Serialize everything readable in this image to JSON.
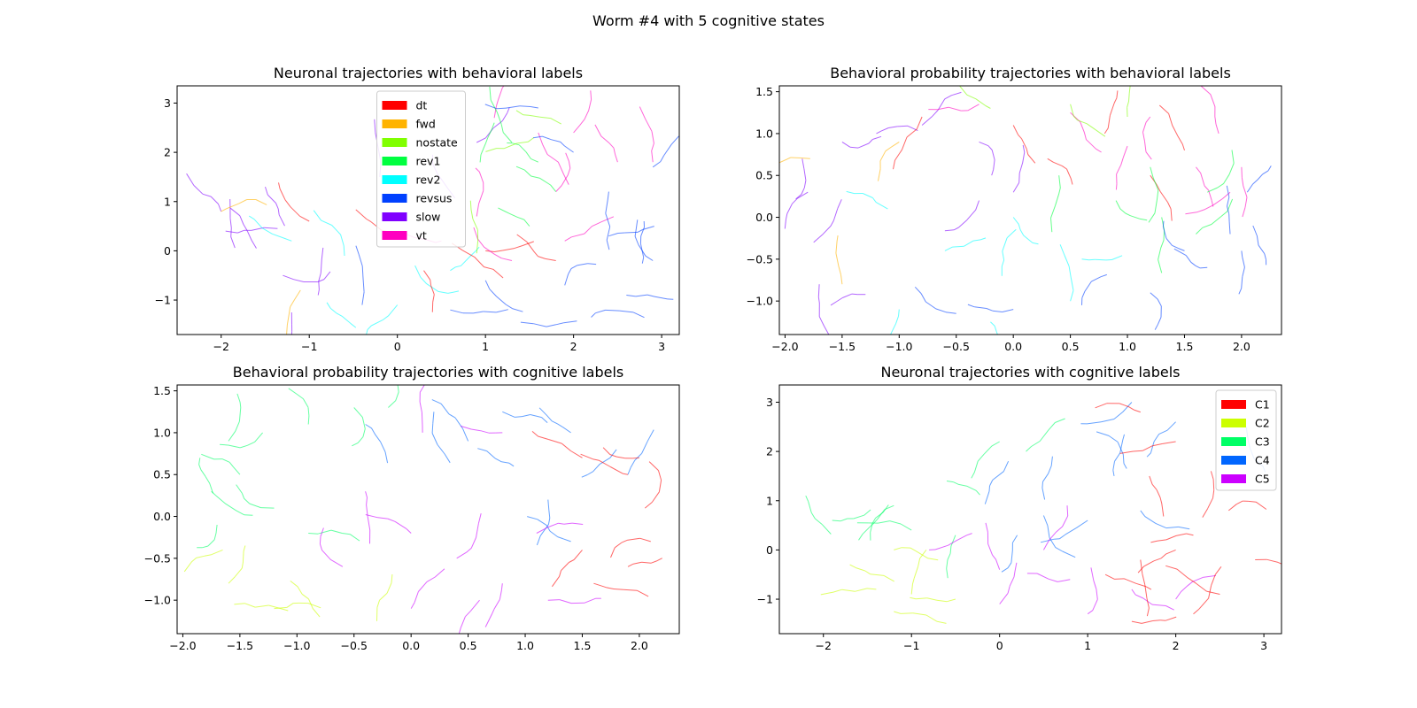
{
  "figure": {
    "title": "Worm #4 with 5 cognitive states"
  },
  "chart_data": [
    {
      "type": "scatter",
      "title": "Neuronal trajectories with behavioral labels",
      "xlim": [
        -2.5,
        3.2
      ],
      "ylim": [
        -1.7,
        3.35
      ],
      "xticks": [
        -2,
        -1,
        0,
        1,
        2,
        3
      ],
      "yticks": [
        -1,
        0,
        1,
        2,
        3
      ],
      "grid": false,
      "legend": {
        "location": "upper-center",
        "entries": [
          {
            "label": "dt",
            "color": "#ff0000"
          },
          {
            "label": "fwd",
            "color": "#ffb300"
          },
          {
            "label": "nostate",
            "color": "#80ff00"
          },
          {
            "label": "rev1",
            "color": "#00ff40"
          },
          {
            "label": "rev2",
            "color": "#00ffff"
          },
          {
            "label": "revsus",
            "color": "#0040ff"
          },
          {
            "label": "slow",
            "color": "#8000ff"
          },
          {
            "label": "vt",
            "color": "#ff00c0"
          }
        ]
      },
      "series": [
        {
          "name": "slow",
          "color": "#8000ff",
          "points": [
            [
              -1.5,
              1.3
            ],
            [
              -1.9,
              1.05
            ],
            [
              -2.0,
              0.8
            ],
            [
              -1.95,
              0.4
            ],
            [
              -1.6,
              0.05
            ],
            [
              -1.3,
              -0.5
            ],
            [
              -1.2,
              -1.25
            ],
            [
              -0.9,
              -0.9
            ],
            [
              -0.2,
              1.5
            ],
            [
              0.4,
              1.95
            ],
            [
              0.9,
              2.2
            ]
          ]
        },
        {
          "name": "fwd",
          "color": "#ffb300",
          "points": [
            [
              -2.0,
              0.8
            ],
            [
              -1.1,
              -0.8
            ]
          ]
        },
        {
          "name": "rev2",
          "color": "#00ffff",
          "points": [
            [
              -1.2,
              0.2
            ],
            [
              -0.6,
              -0.1
            ],
            [
              0.2,
              -0.3
            ],
            [
              0.6,
              -0.4
            ],
            [
              -0.8,
              -1.05
            ],
            [
              0.0,
              -1.1
            ]
          ]
        },
        {
          "name": "dt",
          "color": "#ff0000",
          "points": [
            [
              -1.0,
              0.6
            ],
            [
              0.0,
              0.3
            ],
            [
              1.0,
              0.0
            ],
            [
              1.8,
              -0.2
            ],
            [
              0.3,
              -0.4
            ],
            [
              1.2,
              -0.55
            ]
          ]
        },
        {
          "name": "vt",
          "color": "#ff00c0",
          "points": [
            [
              1.1,
              2.7
            ],
            [
              1.6,
              2.4
            ],
            [
              2.5,
              1.8
            ],
            [
              1.8,
              1.2
            ],
            [
              0.9,
              0.7
            ],
            [
              0.5,
              0.2
            ],
            [
              2.0,
              2.4
            ],
            [
              2.9,
              1.8
            ],
            [
              1.9,
              0.2
            ],
            [
              1.3,
              -0.2
            ]
          ]
        },
        {
          "name": "rev1",
          "color": "#00ff40",
          "points": [
            [
              1.1,
              2.6
            ],
            [
              1.3,
              2.2
            ],
            [
              1.6,
              1.8
            ],
            [
              1.8,
              1.2
            ],
            [
              1.5,
              0.5
            ]
          ]
        },
        {
          "name": "nostate",
          "color": "#80ff00",
          "points": [
            [
              1.35,
              2.85
            ],
            [
              1.55,
              2.3
            ],
            [
              0.9,
              -0.05
            ]
          ]
        },
        {
          "name": "revsus",
          "color": "#0040ff",
          "points": [
            [
              1.6,
              2.9
            ],
            [
              2.0,
              2.0
            ],
            [
              2.4,
              1.2
            ],
            [
              2.9,
              1.7
            ],
            [
              2.8,
              0.6
            ],
            [
              2.9,
              -0.2
            ],
            [
              2.6,
              -0.9
            ],
            [
              2.2,
              -1.35
            ],
            [
              1.4,
              -1.45
            ],
            [
              0.6,
              -1.2
            ],
            [
              -0.4,
              -1.1
            ],
            [
              1.0,
              -0.6
            ],
            [
              1.9,
              -0.7
            ],
            [
              2.4,
              0.3
            ]
          ]
        }
      ]
    },
    {
      "type": "scatter",
      "title": "Behavioral probability trajectories with behavioral labels",
      "xlim": [
        -2.05,
        2.35
      ],
      "ylim": [
        -1.4,
        1.57
      ],
      "xticks": [
        -2.0,
        -1.5,
        -1.0,
        -0.5,
        0.0,
        0.5,
        1.0,
        1.5,
        2.0
      ],
      "yticks": [
        -1.0,
        -0.5,
        0.0,
        0.5,
        1.0,
        1.5
      ],
      "grid": false,
      "series": [
        {
          "name": "slow",
          "color": "#8000ff",
          "points": [
            [
              -1.85,
              0.7
            ],
            [
              -1.8,
              0.3
            ],
            [
              -1.75,
              -0.3
            ],
            [
              -1.7,
              -0.8
            ],
            [
              -1.6,
              -1.05
            ],
            [
              -1.5,
              0.9
            ],
            [
              -1.2,
              1.0
            ],
            [
              -0.8,
              1.1
            ],
            [
              -0.3,
              0.9
            ],
            [
              0.0,
              0.3
            ],
            [
              -0.3,
              0.2
            ]
          ]
        },
        {
          "name": "fwd",
          "color": "#ffb300",
          "points": [
            [
              -1.78,
              0.7
            ],
            [
              -1.5,
              -0.8
            ],
            [
              -1.0,
              0.9
            ]
          ]
        },
        {
          "name": "rev2",
          "color": "#00ffff",
          "points": [
            [
              -1.1,
              0.1
            ],
            [
              -0.6,
              -0.4
            ],
            [
              -0.1,
              -0.7
            ],
            [
              0.5,
              -1.0
            ],
            [
              0.0,
              0.0
            ],
            [
              0.6,
              -0.5
            ],
            [
              -1.0,
              -1.1
            ],
            [
              -0.2,
              -1.25
            ]
          ]
        },
        {
          "name": "dt",
          "color": "#ff0000",
          "points": [
            [
              -0.8,
              1.2
            ],
            [
              0.0,
              1.1
            ],
            [
              0.8,
              1.0
            ],
            [
              1.5,
              0.8
            ],
            [
              0.3,
              0.7
            ],
            [
              1.2,
              0.5
            ]
          ]
        },
        {
          "name": "vt",
          "color": "#ff00c0",
          "points": [
            [
              -0.3,
              1.35
            ],
            [
              0.5,
              1.25
            ],
            [
              1.2,
              1.2
            ],
            [
              1.8,
              1.0
            ],
            [
              2.0,
              0.6
            ],
            [
              1.9,
              0.3
            ],
            [
              1.0,
              0.85
            ],
            [
              1.6,
              0.6
            ]
          ]
        },
        {
          "name": "nostate",
          "color": "#80ff00",
          "points": [
            [
              -0.2,
              1.3
            ],
            [
              0.5,
              1.35
            ],
            [
              1.0,
              1.2
            ]
          ]
        },
        {
          "name": "rev1",
          "color": "#00ff40",
          "points": [
            [
              0.4,
              0.5
            ],
            [
              0.9,
              0.2
            ],
            [
              1.3,
              0.0
            ],
            [
              1.6,
              -0.2
            ],
            [
              1.2,
              0.6
            ],
            [
              1.7,
              0.3
            ]
          ]
        },
        {
          "name": "revsus",
          "color": "#0040ff",
          "points": [
            [
              2.05,
              0.3
            ],
            [
              2.1,
              -0.1
            ],
            [
              2.0,
              -0.4
            ],
            [
              1.7,
              -0.6
            ],
            [
              1.2,
              -0.9
            ],
            [
              0.6,
              -1.05
            ],
            [
              0.0,
              -1.1
            ],
            [
              -0.5,
              -1.15
            ],
            [
              1.5,
              -0.4
            ],
            [
              1.9,
              -0.2
            ]
          ]
        }
      ]
    },
    {
      "type": "scatter",
      "title": "Behavioral probability trajectories with cognitive labels",
      "xlim": [
        -2.05,
        2.35
      ],
      "ylim": [
        -1.4,
        1.57
      ],
      "xticks": [
        -2.0,
        -1.5,
        -1.0,
        -0.5,
        0.0,
        0.5,
        1.0,
        1.5,
        2.0
      ],
      "yticks": [
        -1.0,
        -0.5,
        0.0,
        0.5,
        1.0,
        1.5
      ],
      "grid": false,
      "series": [
        {
          "name": "C3",
          "color": "#00ff66",
          "points": [
            [
              -1.85,
              0.7
            ],
            [
              -1.75,
              0.3
            ],
            [
              -1.7,
              -0.1
            ],
            [
              -1.6,
              0.9
            ],
            [
              -1.3,
              1.0
            ],
            [
              -0.9,
              1.1
            ],
            [
              -0.5,
              1.3
            ],
            [
              -0.2,
              1.3
            ],
            [
              -1.5,
              0.5
            ],
            [
              -1.2,
              0.1
            ],
            [
              -0.9,
              -0.2
            ]
          ]
        },
        {
          "name": "C2",
          "color": "#ccff00",
          "points": [
            [
              -1.65,
              -0.4
            ],
            [
              -1.6,
              -0.8
            ],
            [
              -1.55,
              -1.05
            ],
            [
              -1.2,
              -1.1
            ],
            [
              -0.8,
              -1.2
            ],
            [
              -0.3,
              -1.25
            ]
          ]
        },
        {
          "name": "C4",
          "color": "#0066ff",
          "points": [
            [
              -0.4,
              1.1
            ],
            [
              0.2,
              1.25
            ],
            [
              0.8,
              1.25
            ],
            [
              1.4,
              1.0
            ],
            [
              1.8,
              0.8
            ],
            [
              1.9,
              0.5
            ],
            [
              0.9,
              0.6
            ],
            [
              1.2,
              0.2
            ],
            [
              1.4,
              -0.3
            ],
            [
              0.5,
              0.9
            ]
          ]
        },
        {
          "name": "C5",
          "color": "#cc00ff",
          "points": [
            [
              -0.4,
              0.3
            ],
            [
              0.0,
              -0.2
            ],
            [
              0.4,
              -0.5
            ],
            [
              0.8,
              -0.8
            ],
            [
              1.2,
              -1.0
            ],
            [
              0.0,
              -1.1
            ],
            [
              0.6,
              -1.0
            ],
            [
              -0.6,
              -0.6
            ],
            [
              0.1,
              1.0
            ],
            [
              0.8,
              1.0
            ],
            [
              1.1,
              -0.2
            ]
          ]
        },
        {
          "name": "C1",
          "color": "#ff0000",
          "points": [
            [
              1.5,
              0.7
            ],
            [
              1.9,
              0.5
            ],
            [
              2.05,
              0.1
            ],
            [
              2.1,
              -0.3
            ],
            [
              1.9,
              -0.6
            ],
            [
              1.6,
              -0.8
            ],
            [
              1.5,
              -0.4
            ],
            [
              2.0,
              0.7
            ]
          ]
        }
      ]
    },
    {
      "type": "scatter",
      "title": "Neuronal trajectories with cognitive labels",
      "xlim": [
        -2.5,
        3.2
      ],
      "ylim": [
        -1.7,
        3.35
      ],
      "xticks": [
        -2,
        -1,
        0,
        1,
        2,
        3
      ],
      "yticks": [
        -1,
        0,
        1,
        2,
        3
      ],
      "grid": false,
      "legend": {
        "location": "upper-right",
        "entries": [
          {
            "label": "C1",
            "color": "#ff0000"
          },
          {
            "label": "C2",
            "color": "#ccff00"
          },
          {
            "label": "C3",
            "color": "#00ff66"
          },
          {
            "label": "C4",
            "color": "#0066ff"
          },
          {
            "label": "C5",
            "color": "#cc00ff"
          }
        ]
      },
      "series": [
        {
          "name": "C3",
          "color": "#00ff66",
          "points": [
            [
              -2.2,
              1.1
            ],
            [
              -1.9,
              0.6
            ],
            [
              -1.6,
              0.2
            ],
            [
              -1.2,
              0.9
            ],
            [
              -0.6,
              1.4
            ],
            [
              0.0,
              2.2
            ],
            [
              0.3,
              2.0
            ],
            [
              -1.0,
              0.4
            ],
            [
              -0.5,
              0.3
            ]
          ]
        },
        {
          "name": "C2",
          "color": "#ccff00",
          "points": [
            [
              -1.7,
              -0.3
            ],
            [
              -1.4,
              -0.8
            ],
            [
              -1.2,
              -1.25
            ],
            [
              -1.0,
              -0.9
            ],
            [
              -0.5,
              -1.0
            ],
            [
              -1.2,
              0.0
            ]
          ]
        },
        {
          "name": "C4",
          "color": "#0066ff",
          "points": [
            [
              0.1,
              1.8
            ],
            [
              0.6,
              1.9
            ],
            [
              1.1,
              2.4
            ],
            [
              1.5,
              3.0
            ],
            [
              2.0,
              2.6
            ],
            [
              2.8,
              2.5
            ],
            [
              1.3,
              1.5
            ],
            [
              0.5,
              0.7
            ],
            [
              1.0,
              0.6
            ],
            [
              1.6,
              0.8
            ],
            [
              0.2,
              0.3
            ]
          ]
        },
        {
          "name": "C5",
          "color": "#cc00ff",
          "points": [
            [
              -0.8,
              0.0
            ],
            [
              0.0,
              -0.4
            ],
            [
              0.8,
              -0.6
            ],
            [
              1.5,
              -0.8
            ],
            [
              0.0,
              -1.1
            ],
            [
              1.0,
              -1.3
            ],
            [
              2.0,
              -1.0
            ],
            [
              0.5,
              0.0
            ]
          ]
        },
        {
          "name": "C1",
          "color": "#ff0000",
          "points": [
            [
              1.6,
              2.8
            ],
            [
              2.0,
              2.2
            ],
            [
              2.4,
              1.6
            ],
            [
              2.6,
              0.8
            ],
            [
              2.9,
              -0.2
            ],
            [
              2.5,
              -0.9
            ],
            [
              2.2,
              -1.3
            ],
            [
              1.5,
              -1.45
            ],
            [
              1.2,
              -0.5
            ],
            [
              1.6,
              -0.2
            ],
            [
              2.2,
              0.3
            ],
            [
              1.7,
              1.5
            ],
            [
              2.0,
              0.0
            ]
          ]
        }
      ]
    }
  ]
}
